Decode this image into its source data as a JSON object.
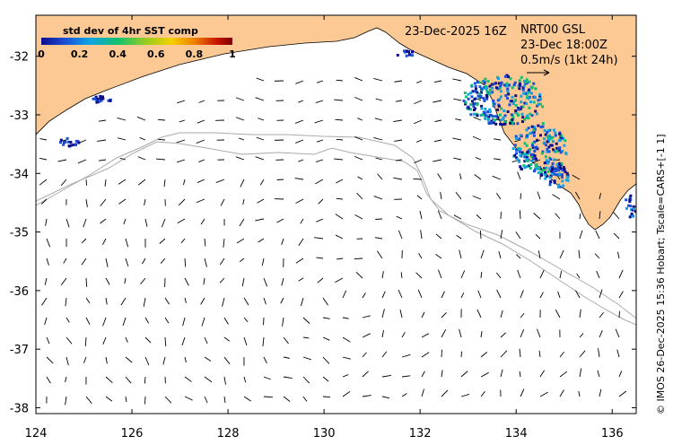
{
  "chart_data": {
    "type": "map",
    "xlim": [
      124,
      136.5
    ],
    "ylim": [
      -38.1,
      -31.3
    ],
    "x_ticks": [
      124,
      126,
      128,
      130,
      132,
      134,
      136
    ],
    "y_ticks": [
      -32,
      -33,
      -34,
      -35,
      -36,
      -37,
      -38
    ],
    "land_color": "#fcc994",
    "ocean_color": "#ffffff",
    "colorbar": {
      "title": "std dev of 4hr SST comp",
      "ticks": [
        "0",
        "0.2",
        "0.4",
        "0.6",
        "0.8",
        "1"
      ],
      "colormap": [
        "#0d0d8c",
        "#1a4fd6",
        "#0fa3e6",
        "#10c070",
        "#9acd20",
        "#f4d000",
        "#f08000",
        "#c81400",
        "#7a0000"
      ]
    },
    "header": {
      "sst_date": "23-Dec-2025 16Z",
      "product": "NRT00 GSL",
      "current_time": "23-Dec 18:00Z",
      "vector_scale_label": "0.5m/s (1kt 24h)"
    },
    "side_text": "© IMOS 26-Dec-2025 15:36 Hobart; Tscale=CARS+[-1 1]"
  }
}
